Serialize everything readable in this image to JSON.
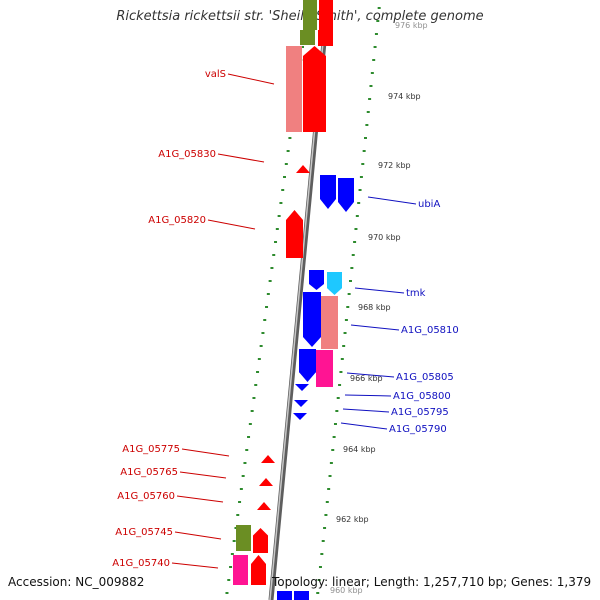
{
  "title": "Rickettsia rickettsii str. 'Sheila Smith', complete genome",
  "footer": {
    "accession_label": "Accession: NC_009882",
    "topology_label": "Topology: linear; Length: 1,257,710 bp; Genes: 1,379"
  },
  "colors": {
    "backbone": "#8a8a8a",
    "tick": "#2e8b2e",
    "forward_label": "#cc0000",
    "reverse_label": "#1010c0",
    "forward_cds": "#ff0000",
    "reverse_cds": "#0000ff",
    "pseudo_pink": "#f08080",
    "light_blue": "#1ec8ff",
    "olive": "#6b8e23",
    "magenta": "#ff1493"
  },
  "scale_labels": [
    "976 kbp",
    "974 kbp",
    "972 kbp",
    "970 kbp",
    "968 kbp",
    "966 kbp",
    "964 kbp",
    "962 kbp",
    "960 kbp"
  ],
  "forward_genes": [
    "valS",
    "A1G_05830",
    "A1G_05820",
    "A1G_05775",
    "A1G_05765",
    "A1G_05760",
    "A1G_05745",
    "A1G_05740"
  ],
  "reverse_genes": [
    "ubiA",
    "tmk",
    "A1G_05810",
    "A1G_05805",
    "A1G_05800",
    "A1G_05795",
    "A1G_05790"
  ]
}
